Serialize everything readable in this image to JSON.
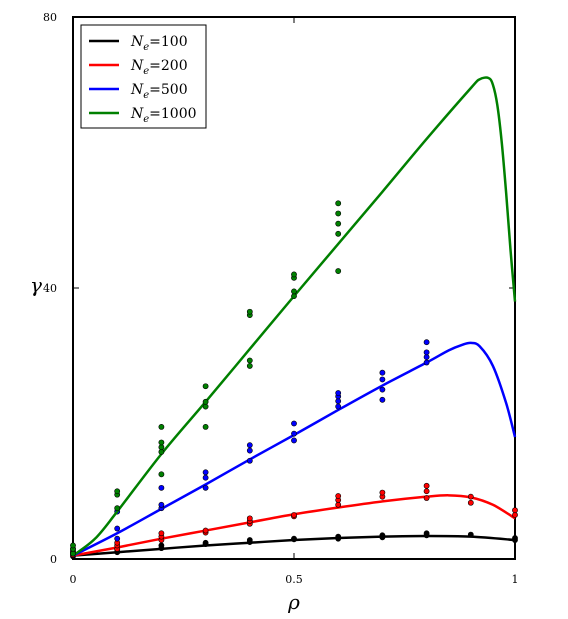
{
  "chart_data": {
    "type": "line",
    "title": "",
    "xlabel": "ρ",
    "ylabel": "γ",
    "xlim": [
      0,
      1
    ],
    "ylim": [
      0,
      80
    ],
    "xticks": [
      0,
      0.5,
      1
    ],
    "xtick_labels": [
      "0",
      "0.5",
      "1"
    ],
    "yticks": [
      0,
      40,
      80
    ],
    "ytick_labels": [
      "0",
      "40",
      "80"
    ],
    "grid": false,
    "legend_position": "top-left",
    "series": [
      {
        "name": "N_e=100",
        "label_main": "N",
        "label_sub": "e",
        "label_rest": "=100",
        "color": "#000000",
        "curve": {
          "x": [
            0,
            0.1,
            0.2,
            0.3,
            0.4,
            0.5,
            0.6,
            0.7,
            0.8,
            0.9,
            1.0
          ],
          "y": [
            0.5,
            1.0,
            1.5,
            2.0,
            2.4,
            2.8,
            3.1,
            3.3,
            3.4,
            3.3,
            2.8
          ]
        },
        "points": {
          "x": [
            0,
            0,
            0,
            0.1,
            0.1,
            0.1,
            0.2,
            0.2,
            0.3,
            0.3,
            0.4,
            0.4,
            0.5,
            0.5,
            0.6,
            0.6,
            0.7,
            0.7,
            0.8,
            0.8,
            0.9,
            1.0,
            1.0
          ],
          "y": [
            0.4,
            0.8,
            1.2,
            1.0,
            1.4,
            1.7,
            1.6,
            2.0,
            2.2,
            2.4,
            2.5,
            2.8,
            2.9,
            3.0,
            3.0,
            3.3,
            3.2,
            3.5,
            3.5,
            3.8,
            3.6,
            2.8,
            3.1
          ]
        }
      },
      {
        "name": "N_e=200",
        "label_main": "N",
        "label_sub": "e",
        "label_rest": "=200",
        "color": "#ff0000",
        "curve": {
          "x": [
            0,
            0.1,
            0.2,
            0.3,
            0.4,
            0.5,
            0.6,
            0.7,
            0.8,
            0.85,
            0.9,
            0.95,
            1.0
          ],
          "y": [
            0.5,
            1.7,
            3.0,
            4.2,
            5.4,
            6.6,
            7.6,
            8.5,
            9.2,
            9.4,
            9.1,
            8.0,
            6.0
          ]
        },
        "points": {
          "x": [
            0,
            0,
            0.1,
            0.1,
            0.1,
            0.2,
            0.2,
            0.2,
            0.3,
            0.3,
            0.4,
            0.4,
            0.4,
            0.5,
            0.5,
            0.6,
            0.6,
            0.6,
            0.7,
            0.7,
            0.8,
            0.8,
            0.8,
            0.9,
            0.9,
            1.0,
            1.0
          ],
          "y": [
            0.6,
            1.0,
            1.5,
            2.0,
            2.4,
            2.8,
            3.3,
            3.8,
            3.9,
            4.2,
            5.2,
            5.6,
            6.0,
            6.3,
            6.5,
            8.0,
            8.7,
            9.3,
            9.2,
            9.8,
            9.0,
            10.0,
            10.8,
            8.3,
            9.2,
            6.5,
            7.2
          ]
        }
      },
      {
        "name": "N_e=500",
        "label_main": "N",
        "label_sub": "e",
        "label_rest": "=500",
        "color": "#0000ff",
        "curve": {
          "x": [
            0,
            0.1,
            0.2,
            0.3,
            0.4,
            0.5,
            0.6,
            0.7,
            0.8,
            0.85,
            0.88,
            0.9,
            0.92,
            0.95,
            0.98,
            1.0
          ],
          "y": [
            0.5,
            3.8,
            7.4,
            11.0,
            14.7,
            18.3,
            22.0,
            25.6,
            29.0,
            30.8,
            31.6,
            31.9,
            31.4,
            28.5,
            23.0,
            18.0
          ]
        },
        "points": {
          "x": [
            0,
            0,
            0.1,
            0.1,
            0.1,
            0.2,
            0.2,
            0.2,
            0.3,
            0.3,
            0.3,
            0.4,
            0.4,
            0.4,
            0.5,
            0.5,
            0.5,
            0.6,
            0.6,
            0.6,
            0.6,
            0.7,
            0.7,
            0.7,
            0.7,
            0.8,
            0.8,
            0.8,
            0.8
          ],
          "y": [
            0.8,
            1.5,
            3.0,
            4.5,
            7.0,
            7.5,
            8.0,
            10.5,
            10.5,
            12.0,
            12.8,
            14.5,
            16.0,
            16.8,
            17.5,
            18.5,
            20.0,
            22.5,
            23.3,
            24.0,
            24.5,
            23.5,
            25.0,
            26.5,
            27.5,
            29.0,
            29.8,
            30.5,
            32.0
          ]
        }
      },
      {
        "name": "N_e=1000",
        "label_main": "N",
        "label_sub": "e",
        "label_rest": "=1000",
        "color": "#008000",
        "curve": {
          "x": [
            0,
            0.05,
            0.1,
            0.2,
            0.3,
            0.4,
            0.5,
            0.6,
            0.7,
            0.8,
            0.9,
            0.92,
            0.94,
            0.95,
            0.96,
            0.97,
            0.98,
            0.99,
            1.0
          ],
          "y": [
            0.5,
            3.0,
            7.0,
            15.5,
            23.2,
            31.0,
            38.8,
            46.5,
            54.2,
            62.0,
            69.5,
            70.8,
            71.0,
            70.0,
            67.0,
            61.5,
            54.0,
            45.5,
            38.0
          ]
        },
        "points": {
          "x": [
            0,
            0,
            0,
            0.1,
            0.1,
            0.1,
            0.2,
            0.2,
            0.2,
            0.2,
            0.2,
            0.3,
            0.3,
            0.3,
            0.3,
            0.4,
            0.4,
            0.4,
            0.4,
            0.5,
            0.5,
            0.5,
            0.5,
            0.6,
            0.6,
            0.6,
            0.6,
            0.6
          ],
          "y": [
            0.8,
            1.5,
            2.0,
            7.5,
            9.5,
            10.0,
            12.5,
            15.8,
            16.5,
            17.2,
            19.5,
            19.5,
            22.5,
            23.2,
            25.5,
            28.5,
            29.3,
            36.0,
            36.5,
            38.8,
            39.5,
            41.5,
            42.0,
            42.5,
            48.0,
            49.5,
            51.0,
            52.5
          ]
        }
      }
    ]
  }
}
